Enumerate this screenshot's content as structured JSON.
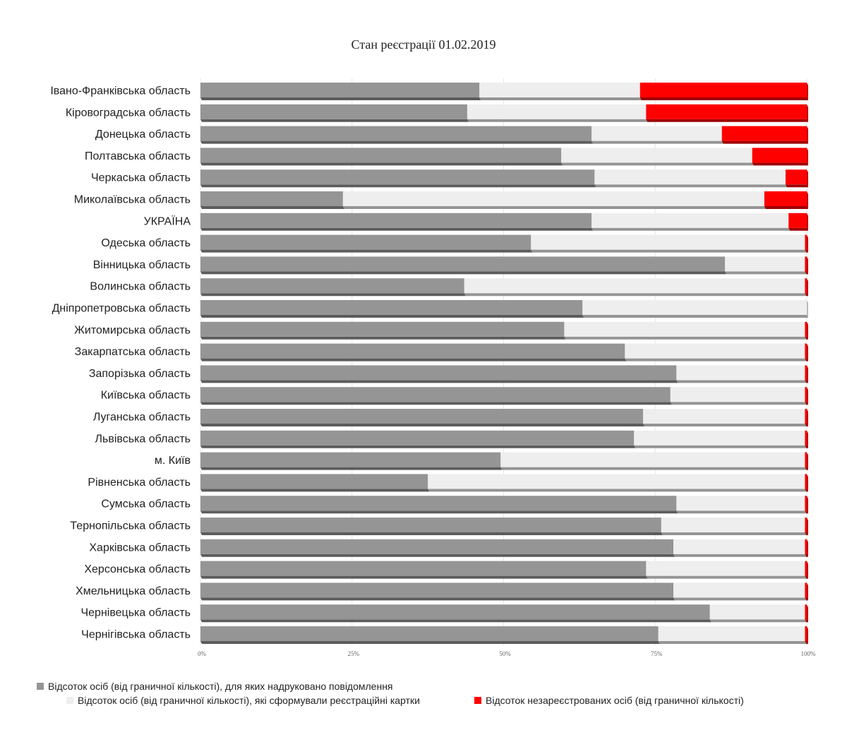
{
  "chart_data": {
    "type": "bar",
    "orientation": "horizontal",
    "stacked": "percent",
    "title": "Стан реєстрації 01.02.2019",
    "xlabel": "",
    "ylabel": "",
    "xlim": [
      0,
      100
    ],
    "x_ticks": [
      "0%",
      "25%",
      "50%",
      "75%",
      "100%"
    ],
    "grid": true,
    "legend_position": "bottom-left",
    "categories": [
      "Івано-Франківська область",
      "Кіровоградська область",
      "Донецька область",
      "Полтавська область",
      "Черкаська область",
      "Миколаївська область",
      "УКРАЇНА",
      "Одеська область",
      "Вінницька область",
      "Волинська область",
      "Дніпропетровська область",
      "Житомирська область",
      "Закарпатська область",
      "Запорізька область",
      "Київська область",
      "Луганська область",
      "Львівська область",
      "м. Київ",
      "Рівненська область",
      "Сумська область",
      "Тернопільська область",
      "Харківська область",
      "Херсонська область",
      "Хмельницька область",
      "Чернівецька область",
      "Чернігівська область"
    ],
    "series": [
      {
        "name": "Відсоток осіб (від граничної кількості), для яких надруковано повідомлення",
        "color": "#959595",
        "values": [
          46,
          44,
          64.5,
          59.5,
          65,
          23.5,
          64.5,
          54.5,
          86.5,
          43.5,
          63,
          60,
          70,
          78.5,
          77.5,
          73,
          71.5,
          49.5,
          37.5,
          78.5,
          76,
          78,
          73.5,
          78,
          84,
          75.5
        ]
      },
      {
        "name": "Відсоток осіб (від граничної кількості), які сформували реєстраційні картки",
        "color": "#eeeeee",
        "values": [
          26.5,
          29.5,
          21.5,
          31.5,
          31.5,
          69.5,
          32.5,
          45.2,
          13.2,
          56.2,
          37,
          39.7,
          29.7,
          21.2,
          22.2,
          26.7,
          28.2,
          50.2,
          62.2,
          21.2,
          23.7,
          21.7,
          26.2,
          21.7,
          15.7,
          24.2
        ]
      },
      {
        "name": "Відсоток незареєстрованих осіб (від граничної кількості)",
        "color": "#ff0000",
        "values": [
          27.5,
          26.5,
          14,
          9,
          3.5,
          7,
          3,
          0.3,
          0.3,
          0.3,
          0,
          0.3,
          0.3,
          0.3,
          0.3,
          0.3,
          0.3,
          0.3,
          0.3,
          0.3,
          0.3,
          0.3,
          0.3,
          0.3,
          0.3,
          0.3
        ]
      }
    ]
  }
}
